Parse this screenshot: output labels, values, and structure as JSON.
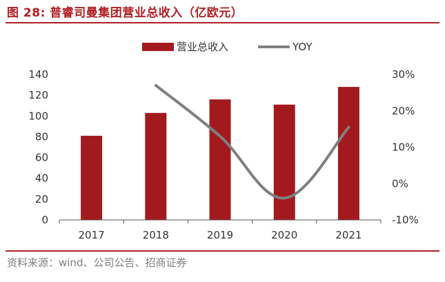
{
  "figure": {
    "title": "图 28:  普睿司曼集团营业总收入（亿欧元）",
    "source": "资料来源：wind、公司公告、招商证券"
  },
  "colors": {
    "accent": "#b01f24",
    "bar": "#a31a1e",
    "line": "#7f7f7f",
    "axis": "#555555"
  },
  "chart_data": {
    "type": "bar",
    "categories": [
      "2017",
      "2018",
      "2019",
      "2020",
      "2021"
    ],
    "series": [
      {
        "name": "营业总收入",
        "type": "bar",
        "axis": "left",
        "values": [
          81,
          103,
          116,
          111,
          128
        ]
      },
      {
        "name": "YOY",
        "type": "line",
        "axis": "right",
        "values": [
          null,
          27,
          13,
          -4,
          15.5
        ]
      }
    ],
    "y_left": {
      "min": 0,
      "max": 140,
      "ticks": [
        0,
        20,
        40,
        60,
        80,
        100,
        120,
        140
      ],
      "tick_labels": [
        "0",
        "20",
        "40",
        "60",
        "80",
        "100",
        "120",
        "140"
      ]
    },
    "y_right": {
      "min": -10,
      "max": 30,
      "ticks": [
        -10,
        0,
        10,
        20,
        30
      ],
      "tick_labels": [
        "-10%",
        "0%",
        "10%",
        "20%",
        "30%"
      ]
    },
    "legend_position": "top-center",
    "grid": false
  }
}
